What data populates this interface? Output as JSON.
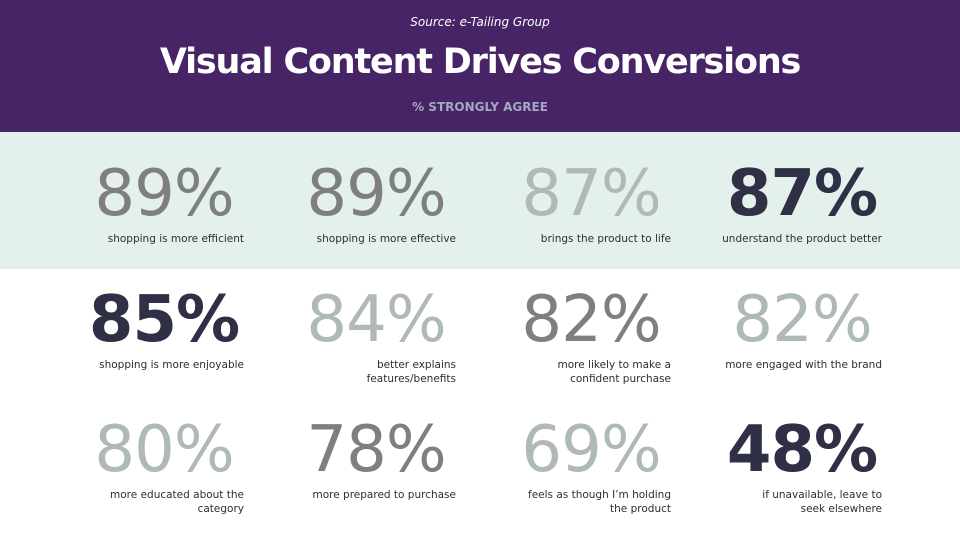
{
  "header": {
    "source": "Source:  e-Tailing Group",
    "title": "Visual Content Drives Conversions",
    "subtitle": "% STRONGLY AGREE"
  },
  "stats": [
    {
      "value": "89%",
      "label": "shopping is more efficient"
    },
    {
      "value": "89%",
      "label": "shopping is more effective"
    },
    {
      "value": "87%",
      "label": "brings the product to life"
    },
    {
      "value": "87%",
      "label": "understand the product better"
    },
    {
      "value": "85%",
      "label": "shopping is more enjoyable"
    },
    {
      "value": "84%",
      "label": "better explains features/benefits"
    },
    {
      "value": "82%",
      "label": "more likely to make a confident purchase"
    },
    {
      "value": "82%",
      "label": "more engaged with the brand"
    },
    {
      "value": "80%",
      "label": "more educated about the category"
    },
    {
      "value": "78%",
      "label": "more prepared to purchase"
    },
    {
      "value": "69%",
      "label": "feels as though I’m holding the product"
    },
    {
      "value": "48%",
      "label": "if unavailable, leave to seek elsewhere"
    }
  ],
  "colors": {
    "header_bg": "#472466",
    "band_bg": "#e4f0ec",
    "mid_gray": "#7f7f7f",
    "light_gray": "#b0b9b9",
    "dark_navy": "#2f2f45"
  }
}
